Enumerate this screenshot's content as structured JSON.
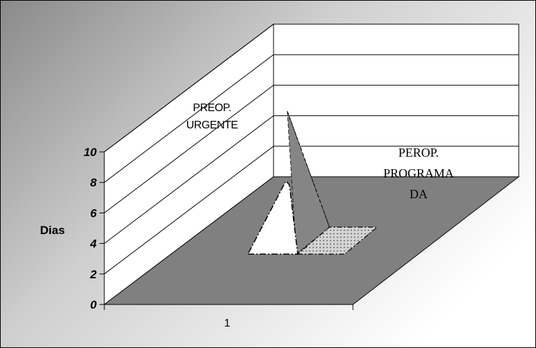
{
  "chart_data": {
    "type": "3d-area",
    "categories": [
      "1"
    ],
    "series": [
      {
        "name": "PREOP. URGENTE",
        "values": [
          6
        ]
      },
      {
        "name": "PEROP. PROGRAMADA",
        "values": [
          1
        ]
      }
    ],
    "ylabel": "Dias",
    "ylim": [
      0,
      10
    ],
    "yticks": [
      "0",
      "2",
      "4",
      "6",
      "8",
      "10"
    ],
    "annotations": {
      "urgente": [
        "PREOP.",
        "URGENTE"
      ],
      "programada": [
        "PEROP.",
        "PROGRAMA",
        "DA"
      ]
    },
    "grid": true,
    "colors": {
      "background_dark": "#858585",
      "floor": "#808080",
      "walls": "#ffffff",
      "series1": "#ffffff",
      "series2": "#c8c8c8"
    }
  }
}
